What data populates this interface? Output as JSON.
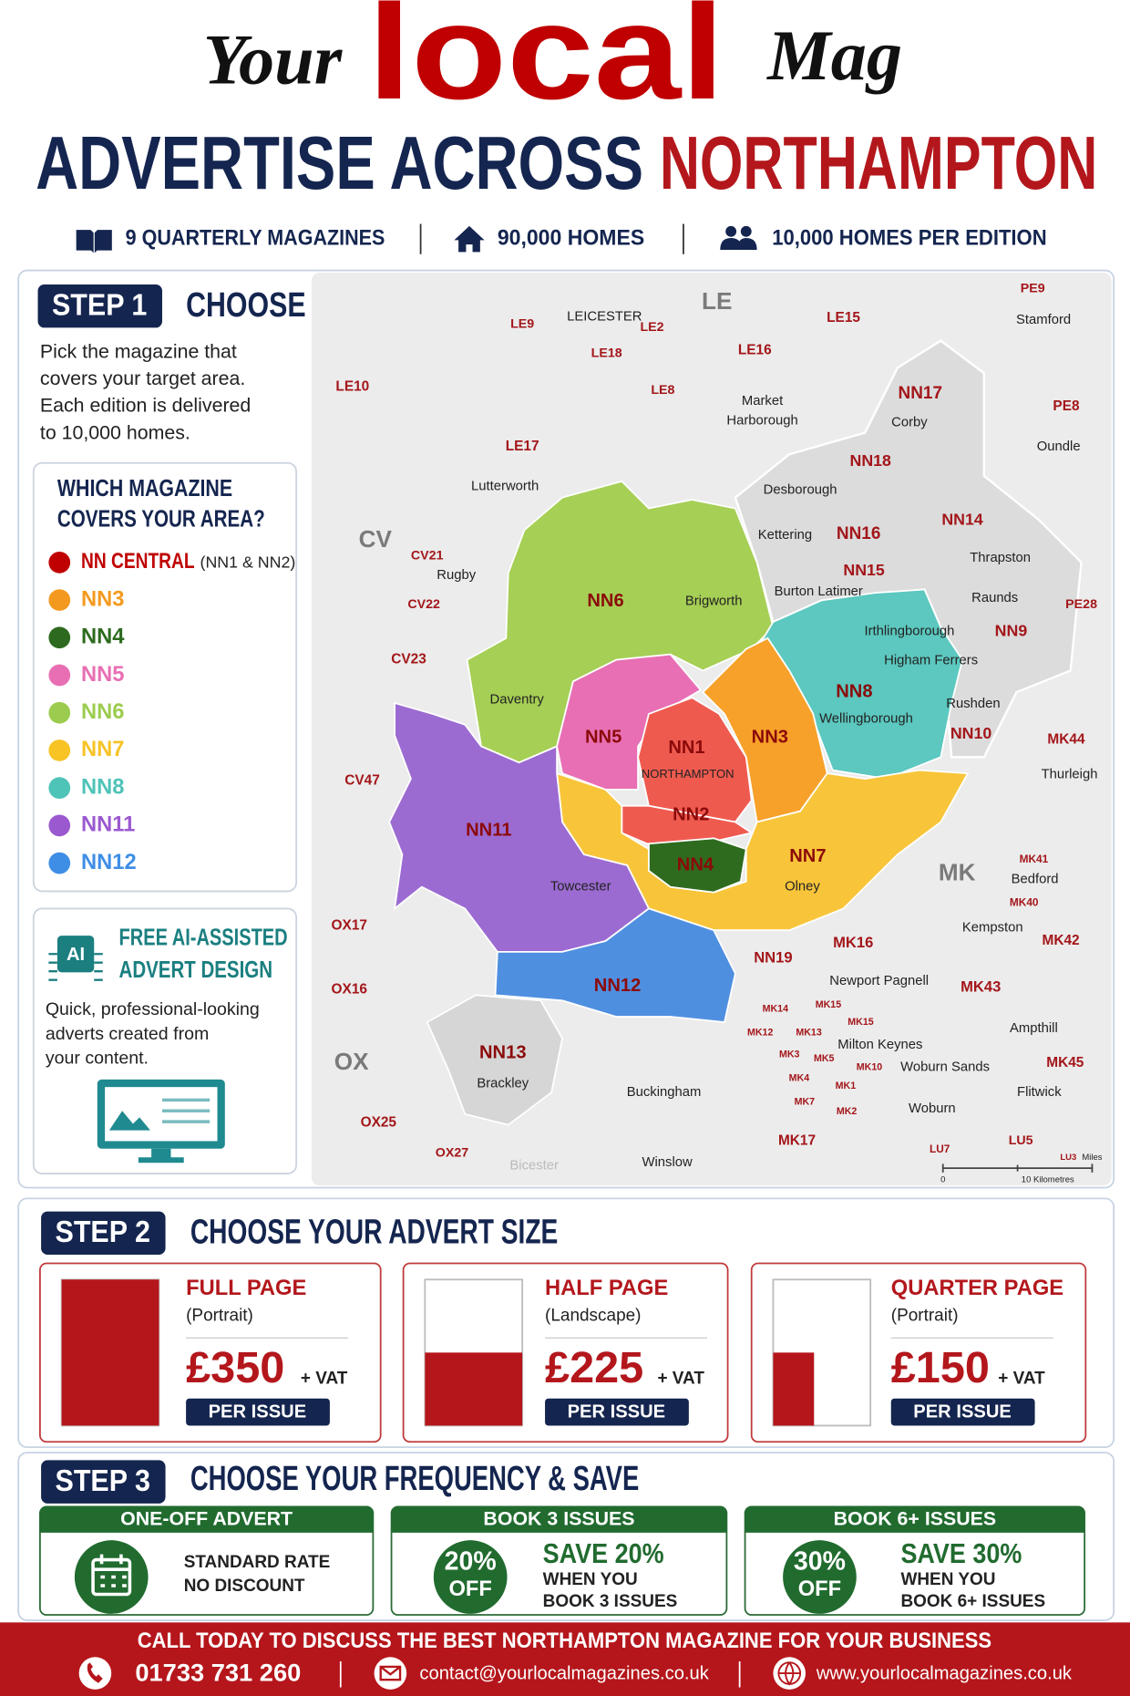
{
  "header": {
    "title": [
      "Your",
      "local",
      "Mag"
    ],
    "headline": [
      "ADVERTISE ACROSS",
      "NORTHAMPTON"
    ],
    "stats": [
      "9 QUARTERLY MAGAZINES",
      "90,000 HOMES",
      "10,000 HOMES PER EDITION"
    ]
  },
  "step1": {
    "badge": "STEP 1",
    "title": "CHOOSE YOUR AREA",
    "intro": [
      "Pick the magazine that",
      "covers your target area.",
      "Each edition is delivered",
      "to 10,000 homes."
    ],
    "legend_title": [
      "WHICH MAGAZINE",
      "COVERS YOUR AREA?"
    ],
    "legend": [
      {
        "name": "NN CENTRAL",
        "note": "(NN1 & NN2)",
        "color": "#c00000"
      },
      {
        "name": "NN3",
        "color": "#f39a1e"
      },
      {
        "name": "NN4",
        "color": "#2d6a1f"
      },
      {
        "name": "NN5",
        "color": "#e86fb3"
      },
      {
        "name": "NN6",
        "color": "#9ccc4f"
      },
      {
        "name": "NN7",
        "color": "#f7c325"
      },
      {
        "name": "NN8",
        "color": "#4ec3b8"
      },
      {
        "name": "NN11",
        "color": "#9b59d0"
      },
      {
        "name": "NN12",
        "color": "#3f8ee6"
      }
    ],
    "ai": {
      "icon": "AI",
      "title": [
        "FREE AI-ASSISTED",
        "ADVERT DESIGN"
      ],
      "text": [
        "Quick, professional-looking",
        "adverts created from",
        "your content."
      ]
    }
  },
  "map": {
    "regions": [
      {
        "label": "NN6",
        "color": "#a6cf55"
      },
      {
        "label": "NN8",
        "color": "#5cc8bf"
      },
      {
        "label": "NN3",
        "color": "#f7a12a"
      },
      {
        "label": "NN5",
        "color": "#e86fb3"
      },
      {
        "label": "NN1",
        "color": "#ef5a4f"
      },
      {
        "label": "NN2",
        "color": "#ef5a4f"
      },
      {
        "label": "NN7",
        "color": "#f8c53a"
      },
      {
        "label": "NN4",
        "color": "#2e6b1e"
      },
      {
        "label": "NN11",
        "color": "#9b6bd1"
      },
      {
        "label": "NN12",
        "color": "#4f8fe0"
      },
      {
        "label": "NN13",
        "color": "#d6d6d6"
      }
    ],
    "areas": [
      "LE",
      "CV",
      "MK",
      "OX"
    ],
    "postcodes": [
      "PE9",
      "LE9",
      "LE2",
      "LE15",
      "LE18",
      "LE16",
      "LE10",
      "LE8",
      "NN17",
      "PE8",
      "LE17",
      "NN18",
      "NN14",
      "NN16",
      "CV21",
      "NN15",
      "CV22",
      "PE28",
      "NN9",
      "CV23",
      "MK44",
      "NN10",
      "CV47",
      "MK41",
      "MK40",
      "OX17",
      "MK42",
      "NN19",
      "MK16",
      "MK43",
      "OX16",
      "MK15",
      "MK14",
      "MK15",
      "MK12",
      "MK13",
      "MK3",
      "MK5",
      "MK10",
      "MK45",
      "MK4",
      "MK1",
      "MK7",
      "MK2",
      "OX25",
      "LU5",
      "MK17",
      "OX27",
      "LU7",
      "LU3"
    ],
    "towns": [
      "LEICESTER",
      "Stamford",
      "Market",
      "Harborough",
      "Corby",
      "Oundle",
      "Lutterworth",
      "Desborough",
      "Kettering",
      "Thrapston",
      "Rugby",
      "Burton Latimer",
      "Brigworth",
      "Raunds",
      "Irthlingborough",
      "Higham Ferrers",
      "Daventry",
      "Rushden",
      "Wellingborough",
      "Thurleigh",
      "NORTHAMPTON",
      "Towcester",
      "Olney",
      "Bedford",
      "Kempston",
      "Newport Pagnell",
      "Ampthill",
      "Milton Keynes",
      "Woburn Sands",
      "Brackley",
      "Buckingham",
      "Flitwick",
      "Woburn",
      "Winslow",
      "Bicester"
    ],
    "scale": [
      "Miles",
      0,
      "10 Kilometres"
    ]
  },
  "step2": {
    "badge": "STEP 2",
    "title": "CHOOSE YOUR ADVERT SIZE",
    "sizes": [
      {
        "title": "FULL PAGE",
        "subtitle": "(Portrait)",
        "price": "£350",
        "vat": "+ VAT",
        "per": "PER ISSUE"
      },
      {
        "title": "HALF PAGE",
        "subtitle": "(Landscape)",
        "price": "£225",
        "vat": "+ VAT",
        "per": "PER ISSUE"
      },
      {
        "title": "QUARTER PAGE",
        "subtitle": "(Portrait)",
        "price": "£150",
        "vat": "+ VAT",
        "per": "PER ISSUE"
      }
    ]
  },
  "step3": {
    "badge": "STEP 3",
    "title": "CHOOSE YOUR FREQUENCY & SAVE",
    "options": [
      {
        "header": "ONE-OFF ADVERT",
        "lines": [
          "STANDARD RATE",
          "NO DISCOUNT"
        ]
      },
      {
        "header": "BOOK 3 ISSUES",
        "badge": [
          "20%",
          "OFF"
        ],
        "save": "SAVE 20%",
        "lines": [
          "WHEN YOU",
          "BOOK 3 ISSUES"
        ]
      },
      {
        "header": "BOOK 6+ ISSUES",
        "badge": [
          "30%",
          "OFF"
        ],
        "save": "SAVE 30%",
        "lines": [
          "WHEN YOU",
          "BOOK 6+ ISSUES"
        ]
      }
    ]
  },
  "footer": {
    "headline": "CALL TODAY TO DISCUSS THE BEST NORTHAMPTON MAGAZINE FOR YOUR BUSINESS",
    "phone": "01733 731 260",
    "email": "contact@yourlocalmagazines.co.uk",
    "web": "www.yourlocalmagazines.co.uk"
  }
}
